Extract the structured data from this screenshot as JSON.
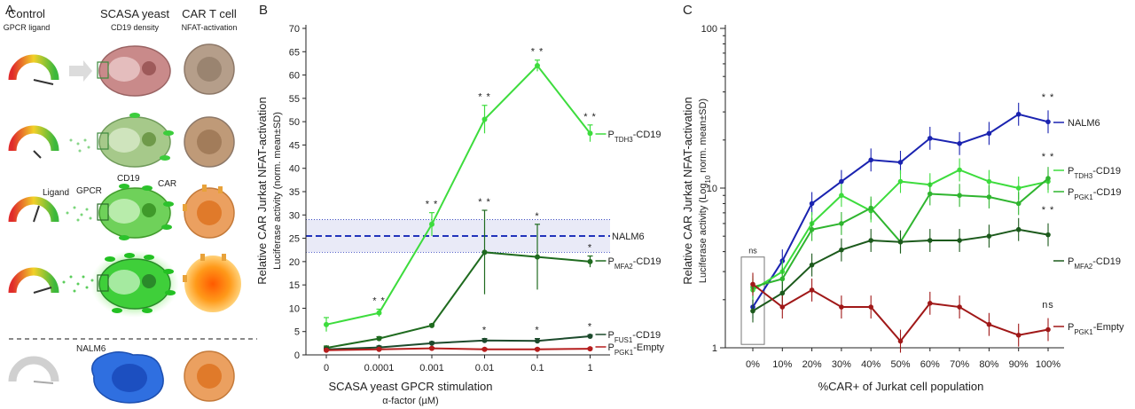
{
  "panel_a": {
    "letter": "A",
    "headers": [
      {
        "title": "Control",
        "sub": "GPCR ligand"
      },
      {
        "title": "SCASA yeast",
        "sub": "CD19 density"
      },
      {
        "title": "CAR T cell",
        "sub": "NFAT-activation"
      }
    ],
    "labels": {
      "ligand": "Ligand",
      "gpcr": "GPCR",
      "cd19": "CD19",
      "car": "CAR",
      "nalm6": "NALM6"
    },
    "colors": {
      "yeast_base": "#c98a8a",
      "yeast_green": "#4ccd3c",
      "tcell_low": "#b59e8a",
      "tcell_high": "#ff7a1a",
      "nalm6": "#2f6fe0",
      "car": "#e8a23a"
    }
  },
  "chart_data": [
    {
      "panel": "B",
      "type": "line",
      "title": "",
      "xlabel": "SCASA yeast GPCR stimulation",
      "xlabel_sub": "α-factor (µM)",
      "ylabel": "Relative CAR Jurkat NFAT-activation",
      "ylabel_sub": "Luciferase activity (norm. mean±SD)",
      "categories": [
        "0",
        "0.0001",
        "0.001",
        "0.01",
        "0.1",
        "1"
      ],
      "ylim": [
        0,
        70
      ],
      "yticks": [
        0,
        5,
        10,
        15,
        20,
        25,
        30,
        35,
        40,
        45,
        50,
        55,
        60,
        65,
        70
      ],
      "reference": {
        "name": "NALM6",
        "value": 25.5,
        "band": [
          22.0,
          29.0
        ],
        "color": "#2233bb"
      },
      "series": [
        {
          "name": "TDH3",
          "prefix": "P",
          "suffix": "-CD19",
          "color": "#3ddc3d",
          "values": [
            6.5,
            9.0,
            28.0,
            50.5,
            62.0,
            47.5
          ],
          "sd": [
            1.5,
            0.8,
            2.5,
            3.0,
            1.2,
            1.8
          ],
          "sig": [
            "",
            "* *",
            "* *",
            "* *",
            "* *",
            "* *"
          ]
        },
        {
          "name": "MFA2",
          "prefix": "P",
          "suffix": "-CD19",
          "color": "#1f6b1f",
          "values": [
            1.5,
            3.5,
            6.3,
            22.0,
            21.0,
            20.0
          ],
          "sd": [
            0.4,
            0.4,
            0.3,
            9.0,
            7.0,
            1.2
          ],
          "sig": [
            "",
            "",
            "",
            "* *",
            "*",
            "*"
          ]
        },
        {
          "name": "FUS1",
          "prefix": "P",
          "suffix": "-CD19",
          "color": "#1c4a2c",
          "values": [
            1.2,
            1.6,
            2.5,
            3.1,
            3.0,
            4.0
          ],
          "sd": [
            0.3,
            0.3,
            0.3,
            0.4,
            0.5,
            0.3
          ],
          "sig": [
            "",
            "",
            "",
            "*",
            "*",
            "*"
          ]
        },
        {
          "name": "PGK1",
          "prefix": "P",
          "suffix": "-Empty",
          "color": "#b51d1d",
          "values": [
            1.0,
            1.2,
            1.4,
            1.2,
            1.2,
            1.3
          ],
          "sd": [
            0.2,
            0.2,
            0.2,
            0.2,
            0.2,
            0.2
          ],
          "sig": [
            "",
            "",
            "",
            "",
            "",
            ""
          ]
        }
      ]
    },
    {
      "panel": "C",
      "type": "line",
      "yscale": "log",
      "xlabel": "%CAR+ of Jurkat cell population",
      "ylabel": "Relative CAR Jurkat NFAT-activation",
      "ylabel_sub_pre": "Luciferase activity (Log",
      "ylabel_sub_subscript": "10",
      "ylabel_sub_post": " norm. mean±SD)",
      "categories": [
        "0%",
        "10%",
        "20%",
        "30%",
        "40%",
        "50%",
        "60%",
        "70%",
        "80%",
        "90%",
        "100%"
      ],
      "ylim": [
        1,
        100
      ],
      "yticks": [
        1,
        10,
        100
      ],
      "box_label": "ns",
      "series": [
        {
          "name": "NALM6",
          "prefix": "",
          "sub": "",
          "suffix": "",
          "color": "#1a23b0",
          "values": [
            1.8,
            3.5,
            8.0,
            11.0,
            15.0,
            14.5,
            20.5,
            19.0,
            22.0,
            29.0,
            26.0
          ],
          "end_sig": "* *"
        },
        {
          "name": "TDH3",
          "prefix": "P",
          "suffix": "-CD19",
          "color": "#3ddc3d",
          "values": [
            2.3,
            3.0,
            6.0,
            9.0,
            7.2,
            11.0,
            10.5,
            13.0,
            11.0,
            10.0,
            11.0
          ],
          "end_sig": "* *"
        },
        {
          "name": "PGK1",
          "prefix": "P",
          "suffix": "-CD19",
          "color": "#2fb52f",
          "values": [
            2.4,
            2.7,
            5.5,
            6.0,
            7.5,
            4.6,
            9.2,
            9.0,
            8.8,
            8.0,
            11.5
          ],
          "end_sig": ""
        },
        {
          "name": "MFA2",
          "prefix": "P",
          "suffix": "-CD19",
          "color": "#1c5a1c",
          "values": [
            1.7,
            2.2,
            3.3,
            4.1,
            4.7,
            4.6,
            4.7,
            4.7,
            5.0,
            5.5,
            5.1
          ],
          "end_sig": "* *"
        },
        {
          "name": "PGK1",
          "prefix": "P",
          "suffix": "-Empty",
          "color": "#a01818",
          "values": [
            2.5,
            1.8,
            2.3,
            1.8,
            1.8,
            1.1,
            1.9,
            1.8,
            1.4,
            1.2,
            1.3
          ],
          "end_sig": "ns"
        }
      ]
    }
  ]
}
